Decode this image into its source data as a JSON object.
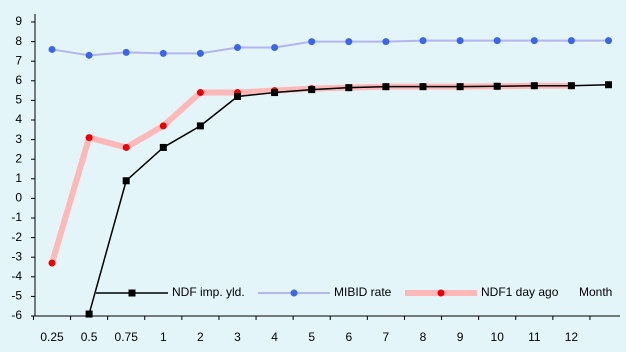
{
  "chart_data": {
    "type": "line",
    "categories": [
      "0.25",
      "0.5",
      "0.75",
      "1",
      "2",
      "3",
      "4",
      "5",
      "6",
      "7",
      "8",
      "9",
      "10",
      "11",
      "12",
      null
    ],
    "x_label": "Month",
    "ylim": [
      -6,
      9
    ],
    "yticks": [
      -6,
      -5,
      -4,
      -3,
      -2,
      -1,
      0,
      1,
      2,
      3,
      4,
      5,
      6,
      7,
      8,
      9
    ],
    "series": [
      {
        "name": "NDF imp. yld.",
        "color": "#000000",
        "values": [
          null,
          -5.9,
          0.9,
          2.6,
          3.7,
          5.2,
          5.4,
          5.55,
          5.65,
          5.7,
          5.7,
          5.7,
          5.72,
          5.75,
          5.75,
          5.8
        ]
      },
      {
        "name": "MIBID rate",
        "color": "#b4b4f0",
        "values": [
          7.6,
          7.3,
          7.45,
          7.4,
          7.4,
          7.7,
          7.7,
          8.0,
          8.0,
          8.0,
          8.05,
          8.05,
          8.05,
          8.05,
          8.05,
          8.05
        ]
      },
      {
        "name": "NDF1 day ago",
        "color": "#ffb8b8",
        "values": [
          -3.3,
          3.1,
          2.6,
          3.7,
          5.4,
          5.4,
          5.5,
          5.6,
          5.65,
          5.7,
          5.7,
          5.7,
          5.72,
          5.75,
          5.75,
          null
        ]
      }
    ]
  }
}
